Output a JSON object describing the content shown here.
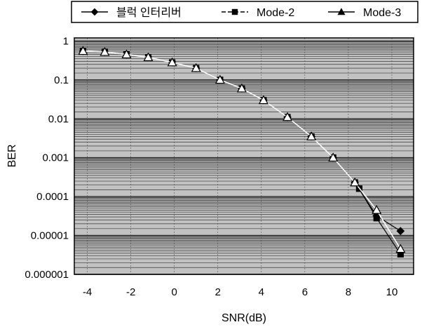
{
  "chart_data": {
    "type": "line",
    "xlabel": "SNR(dB)",
    "ylabel": "BER",
    "xlim": [
      -4.6,
      11
    ],
    "ylim": [
      1e-06,
      1.2
    ],
    "yscale": "log",
    "x_ticks": [
      -4,
      -2,
      0,
      2,
      4,
      6,
      8,
      10
    ],
    "x_tick_labels": [
      "-4",
      "-2",
      "0",
      "2",
      "4",
      "6",
      "8",
      "10"
    ],
    "y_ticks": [
      1,
      0.1,
      0.01,
      0.001,
      0.0001,
      1e-05,
      1e-06
    ],
    "y_tick_labels": [
      "1",
      "0.1",
      "0.01",
      "0.001",
      "0.0001",
      "0.00001",
      "0.000001"
    ],
    "grid": true,
    "legend_position": "top",
    "colors": {
      "plot_bg": "#c2c2c2",
      "grid": "#3a3a3a",
      "series": "#000000",
      "marker_fill": "#ffffff"
    },
    "series": [
      {
        "name": "블럭 인터리버",
        "marker": "diamond",
        "x": [
          -4.2,
          -3.2,
          -2.2,
          -1.2,
          -0.1,
          1.0,
          2.1,
          3.1,
          4.1,
          5.2,
          6.3,
          7.3,
          8.3,
          9.3,
          10.4
        ],
        "y": [
          0.55,
          0.52,
          0.45,
          0.38,
          0.28,
          0.2,
          0.1,
          0.06,
          0.03,
          0.011,
          0.0035,
          0.001,
          0.00023,
          3.2e-05,
          1.3e-05
        ]
      },
      {
        "name": "Mode-2",
        "marker": "square",
        "x": [
          -4.2,
          -3.2,
          -2.2,
          -1.2,
          -0.1,
          1.0,
          2.1,
          3.1,
          4.1,
          5.2,
          6.3,
          7.3,
          8.3,
          8.5,
          9.3,
          10.4
        ],
        "y": [
          0.55,
          0.52,
          0.45,
          0.38,
          0.28,
          0.2,
          0.1,
          0.06,
          0.03,
          0.011,
          0.0035,
          0.001,
          0.00023,
          0.00016,
          2.8e-05,
          3.3e-06
        ]
      },
      {
        "name": "Mode-3",
        "marker": "triangle",
        "x": [
          -4.2,
          -3.2,
          -2.2,
          -1.2,
          -0.1,
          1.0,
          2.1,
          3.1,
          4.1,
          5.2,
          6.3,
          7.3,
          8.3,
          9.3,
          10.4
        ],
        "y": [
          0.55,
          0.52,
          0.45,
          0.38,
          0.28,
          0.2,
          0.1,
          0.06,
          0.03,
          0.011,
          0.0035,
          0.001,
          0.00023,
          4.5e-05,
          4.5e-06
        ]
      }
    ]
  }
}
